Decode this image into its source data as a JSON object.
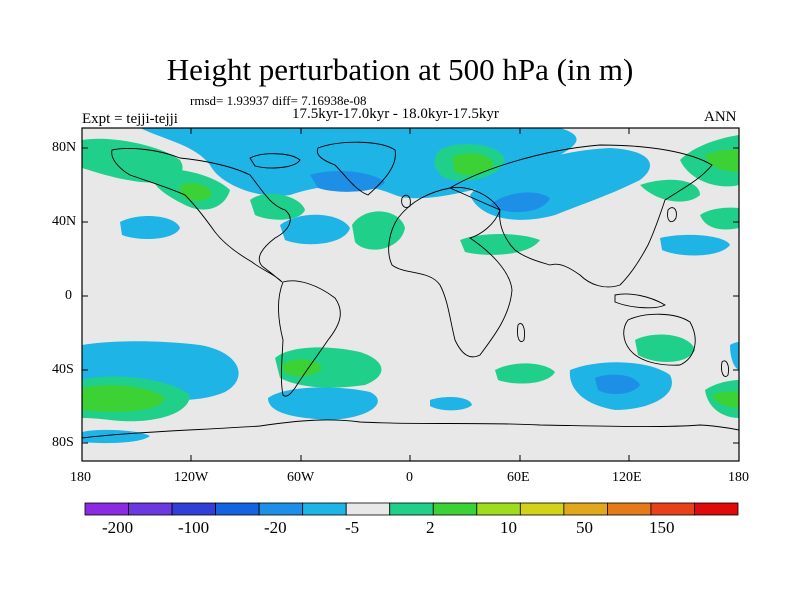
{
  "title": "Height perturbation at 500 hPa (in m)",
  "stats": "rmsd= 1.93937  diff= 7.16938e-08",
  "experiment": "Expt = tejji-tejji",
  "periods": "17.5kyr-17.0kyr - 18.0kyr-17.5kyr",
  "season": "ANN",
  "axes": {
    "lat_ticks": [
      "80N",
      "40N",
      "0",
      "40S",
      "80S"
    ],
    "lon_ticks": [
      "180",
      "120W",
      "60W",
      "0",
      "60E",
      "120E",
      "180"
    ]
  },
  "colorbar": {
    "colors": [
      "#8a2be2",
      "#6a3ae0",
      "#2f3fd8",
      "#1464e0",
      "#1e8fe6",
      "#1fb4e6",
      "#e8e8e8",
      "#20d08a",
      "#3cd236",
      "#a0dc1e",
      "#d2d21a",
      "#e0a81a",
      "#e67a18",
      "#e8401a",
      "#e00a0a"
    ],
    "labels": [
      "-200",
      "-100",
      "-20",
      "-5",
      "2",
      "10",
      "50",
      "150"
    ]
  },
  "colors": {
    "background": "#e8e8e8",
    "positive": "#3cd236",
    "positive_light": "#20d08a",
    "negative": "#1fb4e6",
    "negative_dark": "#1e8fe6"
  }
}
